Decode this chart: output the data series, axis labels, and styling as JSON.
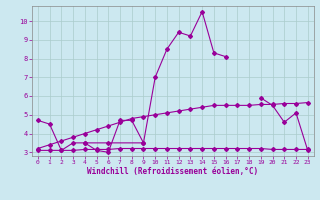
{
  "xlabel": "Windchill (Refroidissement éolien,°C)",
  "background_color": "#cce8f0",
  "line_color": "#990099",
  "grid_color": "#aacccc",
  "xlim": [
    -0.5,
    23.5
  ],
  "ylim": [
    2.8,
    10.8
  ],
  "yticks": [
    3,
    4,
    5,
    6,
    7,
    8,
    9,
    10
  ],
  "xticks": [
    0,
    1,
    2,
    3,
    4,
    5,
    6,
    7,
    8,
    9,
    10,
    11,
    12,
    13,
    14,
    15,
    16,
    17,
    18,
    19,
    20,
    21,
    22,
    23
  ],
  "series": [
    [
      0,
      4.7
    ],
    [
      1,
      4.5
    ],
    [
      2,
      3.1
    ],
    [
      3,
      3.5
    ],
    [
      4,
      3.5
    ],
    [
      5,
      3.1
    ],
    [
      6,
      3.0
    ],
    [
      7,
      4.7
    ],
    [
      8,
      4.7
    ],
    [
      9,
      3.5
    ]
  ],
  "series2": [
    [
      4,
      3.5
    ],
    [
      6,
      3.5
    ],
    [
      9,
      3.5
    ],
    [
      10,
      7.0
    ],
    [
      11,
      8.5
    ],
    [
      12,
      9.4
    ],
    [
      13,
      9.2
    ],
    [
      14,
      10.5
    ],
    [
      15,
      8.3
    ],
    [
      16,
      8.1
    ]
  ],
  "series3": [
    [
      19,
      5.9
    ],
    [
      20,
      5.5
    ],
    [
      21,
      4.6
    ],
    [
      22,
      5.1
    ],
    [
      23,
      3.1
    ]
  ],
  "series4_x": [
    0,
    1,
    2,
    3,
    4,
    5,
    6,
    7,
    8,
    9,
    10,
    11,
    12,
    13,
    14,
    15,
    16,
    17,
    18,
    19,
    20,
    21,
    22,
    23
  ],
  "series4_y": [
    3.1,
    3.1,
    3.1,
    3.1,
    3.15,
    3.15,
    3.15,
    3.2,
    3.2,
    3.2,
    3.2,
    3.2,
    3.2,
    3.2,
    3.2,
    3.2,
    3.2,
    3.2,
    3.2,
    3.2,
    3.15,
    3.15,
    3.15,
    3.15
  ],
  "series5_x": [
    0,
    1,
    2,
    3,
    4,
    5,
    6,
    7,
    8,
    9,
    10,
    11,
    12,
    13,
    14,
    15,
    16,
    17,
    18,
    19,
    20,
    21,
    22,
    23
  ],
  "series5_y": [
    3.2,
    3.4,
    3.6,
    3.8,
    4.0,
    4.2,
    4.4,
    4.6,
    4.8,
    4.9,
    5.0,
    5.1,
    5.2,
    5.3,
    5.4,
    5.5,
    5.5,
    5.5,
    5.5,
    5.55,
    5.55,
    5.6,
    5.6,
    5.65
  ]
}
